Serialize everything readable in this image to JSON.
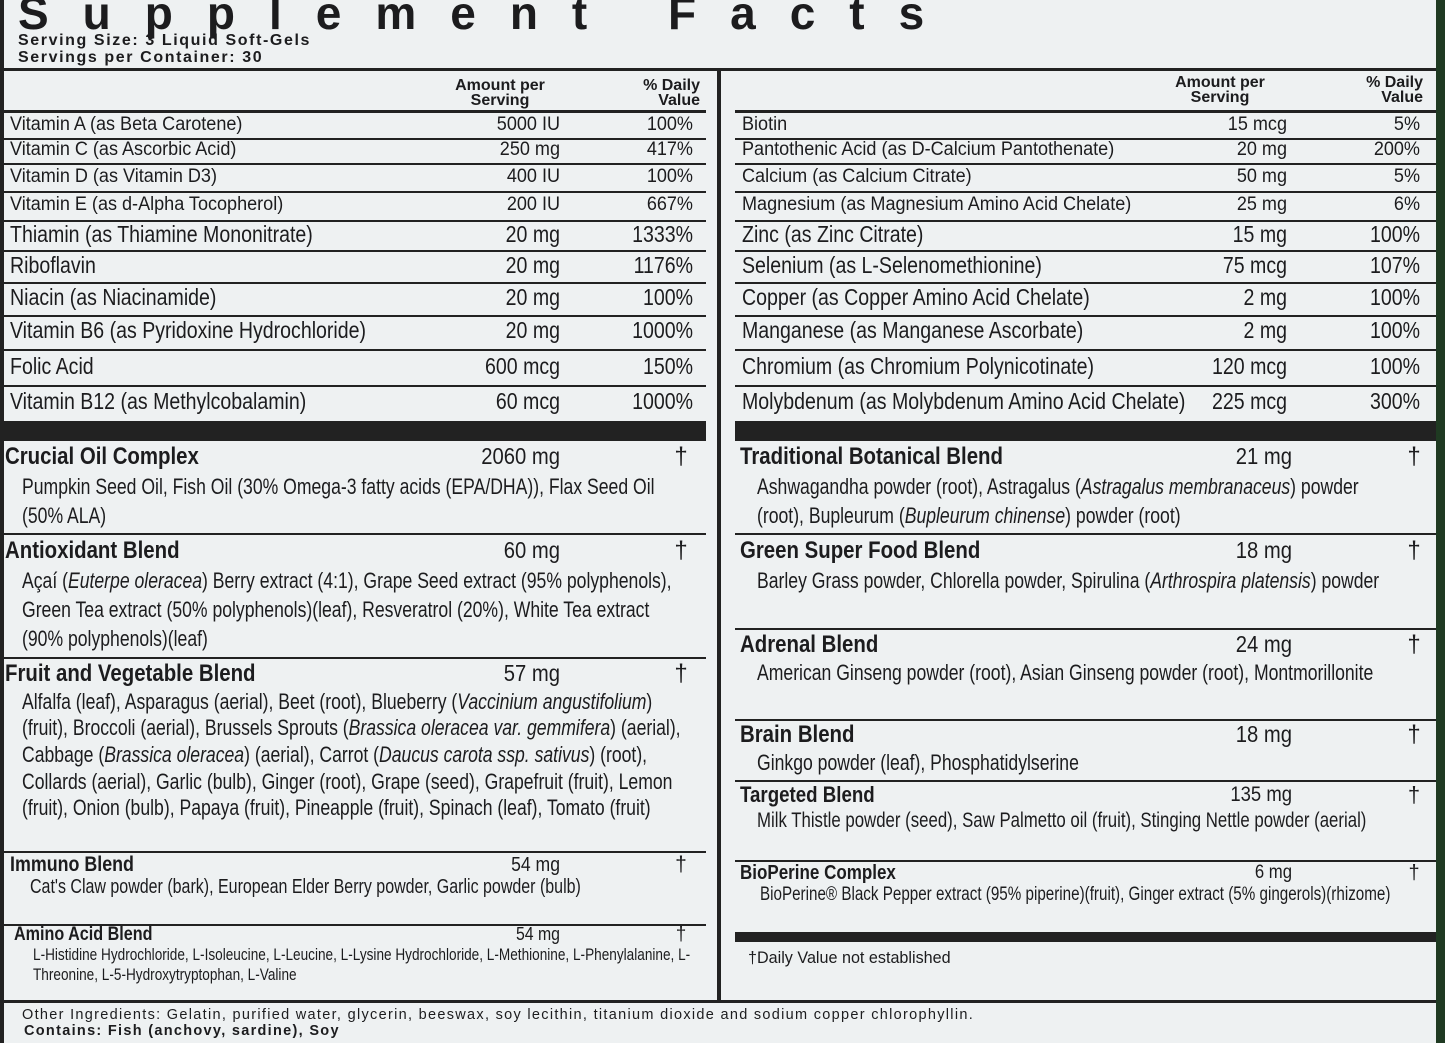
{
  "title": "Supplement Facts",
  "serving_size": "Serving Size: 3 Liquid Soft-Gels",
  "servings_per_container": "Servings per Container: 30",
  "columns": {
    "amount": "Amount per Serving",
    "daily_value": "% Daily Value"
  },
  "left_nutrients": [
    [
      "Vitamin A (as Beta Carotene)",
      "5000 IU",
      "100%"
    ],
    [
      "Vitamin C (as Ascorbic Acid)",
      "250 mg",
      "417%"
    ],
    [
      "Vitamin D (as Vitamin D3)",
      "400 IU",
      "100%"
    ],
    [
      "Vitamin E (as d-Alpha Tocopherol)",
      "200 IU",
      "667%"
    ],
    [
      "Thiamin (as Thiamine Mononitrate)",
      "20 mg",
      "1333%"
    ],
    [
      "Riboflavin",
      "20 mg",
      "1176%"
    ],
    [
      "Niacin (as Niacinamide)",
      "20 mg",
      "100%"
    ],
    [
      "Vitamin B6 (as Pyridoxine Hydrochloride)",
      "20 mg",
      "1000%"
    ],
    [
      "Folic Acid",
      "600 mcg",
      "150%"
    ],
    [
      "Vitamin B12 (as Methylcobalamin)",
      "60 mcg",
      "1000%"
    ]
  ],
  "right_nutrients": [
    [
      "Biotin",
      "15 mcg",
      "5%"
    ],
    [
      "Pantothenic Acid (as D-Calcium Pantothenate)",
      "20 mg",
      "200%"
    ],
    [
      "Calcium (as Calcium Citrate)",
      "50 mg",
      "5%"
    ],
    [
      "Magnesium (as Magnesium Amino Acid Chelate)",
      "25 mg",
      "6%"
    ],
    [
      "Zinc (as Zinc Citrate)",
      "15 mg",
      "100%"
    ],
    [
      "Selenium (as L-Selenomethionine)",
      "75 mcg",
      "107%"
    ],
    [
      "Copper (as Copper Amino Acid Chelate)",
      "2 mg",
      "100%"
    ],
    [
      "Manganese (as Manganese Ascorbate)",
      "2 mg",
      "100%"
    ],
    [
      "Chromium (as Chromium Polynicotinate)",
      "120 mcg",
      "100%"
    ],
    [
      "Molybdenum (as Molybdenum Amino Acid Chelate)",
      "225 mcg",
      "300%"
    ]
  ],
  "left_blends": [
    {
      "name": "Crucial Oil Complex",
      "amount": "2060 mg",
      "daily_value": "†",
      "description": [
        "Pumpkin Seed Oil, Fish Oil (30% Omega-3 fatty acids (EPA/DHA)), Flax Seed Oil (50% ALA)"
      ]
    },
    {
      "name": "Antioxidant Blend",
      "amount": "60 mg",
      "daily_value": "†",
      "description": [
        "Açaí (",
        {
          "text": "Euterpe oleracea",
          "italic": true
        },
        ") Berry extract (4:1), Grape Seed extract (95% polyphenols), Green Tea extract (50% polyphenols)(leaf), Resveratrol (20%), White Tea extract (90% polyphenols)(leaf)"
      ]
    },
    {
      "name": "Fruit and Vegetable Blend",
      "amount": "57 mg",
      "daily_value": "†",
      "description": [
        "Alfalfa (leaf), Asparagus (aerial), Beet (root), Blueberry (",
        {
          "text": "Vaccinium angustifolium",
          "italic": true
        },
        ") (fruit), Broccoli (aerial), Brussels Sprouts (",
        {
          "text": "Brassica oleracea var. gemmifera",
          "italic": true
        },
        ") (aerial), Cabbage (",
        {
          "text": "Brassica oleracea",
          "italic": true
        },
        ") (aerial), Carrot (",
        {
          "text": "Daucus carota ssp. sativus",
          "italic": true
        },
        ") (root), Collards (aerial), Garlic (bulb), Ginger (root), Grape (seed), Grapefruit (fruit), Lemon (fruit), Onion (bulb), Papaya (fruit), Pineapple (fruit), Spinach (leaf), Tomato (fruit)"
      ]
    },
    {
      "name": "Immuno Blend",
      "amount": "54 mg",
      "daily_value": "†",
      "description": [
        "Cat's Claw powder (bark), European Elder Berry powder, Garlic powder (bulb)"
      ]
    },
    {
      "name": "Amino Acid Blend",
      "amount": "54 mg",
      "daily_value": "†",
      "description": [
        "L-Histidine Hydrochloride, L-Isoleucine, L-Leucine, L-Lysine Hydrochloride, L-Methionine, L-Phenylalanine, L-Threonine, L-5-Hydroxytryptophan, L-Valine"
      ]
    }
  ],
  "right_blends": [
    {
      "name": "Traditional Botanical Blend",
      "amount": "21 mg",
      "daily_value": "†",
      "description": [
        "Ashwagandha powder (root), Astragalus (",
        {
          "text": "Astragalus membranaceus",
          "italic": true
        },
        ") powder (root), Bupleurum (",
        {
          "text": "Bupleurum chinense",
          "italic": true
        },
        ") powder (root)"
      ]
    },
    {
      "name": "Green Super Food Blend",
      "amount": "18 mg",
      "daily_value": "†",
      "description": [
        "Barley Grass powder, Chlorella powder, Spirulina (",
        {
          "text": "Arthrospira platensis",
          "italic": true
        },
        ") powder"
      ]
    },
    {
      "name": "Adrenal Blend",
      "amount": "24 mg",
      "daily_value": "†",
      "description": [
        "American Ginseng powder (root), Asian Ginseng powder (root), Montmorillonite"
      ]
    },
    {
      "name": "Brain Blend",
      "amount": "18 mg",
      "daily_value": "†",
      "description": [
        "Ginkgo powder (leaf), Phosphatidylserine"
      ]
    },
    {
      "name": "Targeted Blend",
      "amount": "135 mg",
      "daily_value": "†",
      "description": [
        "Milk Thistle powder (seed), Saw Palmetto oil (fruit), Stinging Nettle powder (aerial)"
      ]
    },
    {
      "name": "BioPerine Complex",
      "amount": "6 mg",
      "daily_value": "†",
      "description": [
        "BioPerine® Black Pepper extract (95% piperine)(fruit), Ginger extract (5% gingerols)(rhizome)"
      ]
    }
  ],
  "footnote": "†Daily Value not established",
  "other_ingredients": "Other Ingredients: Gelatin, purified water, glycerin, beeswax, soy lecithin, titanium dioxide and sodium copper chlorophyllin.",
  "contains": "Contains: Fish (anchovy, sardine), Soy"
}
